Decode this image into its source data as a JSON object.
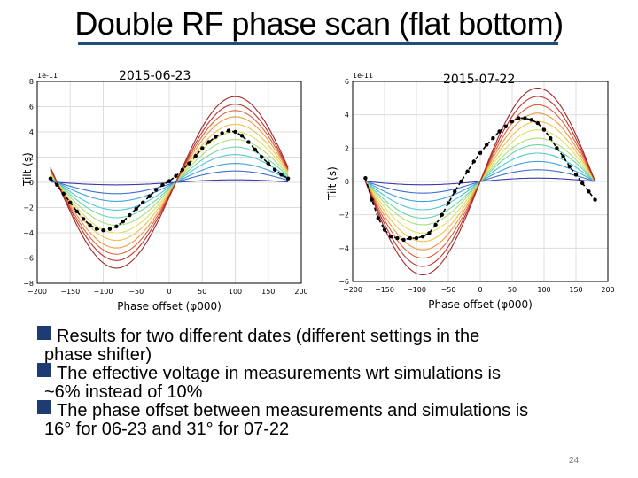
{
  "slide": {
    "title": "Double RF phase scan (flat bottom)",
    "page_number": "24",
    "bullets": [
      {
        "line1": "Results for two different dates (different settings in the",
        "line2": "phase shifter)"
      },
      {
        "line1": "The effective voltage in measurements wrt simulations is",
        "line2": "~6% instead of 10%"
      },
      {
        "line1": "The phase offset between measurements and simulations is",
        "line2": "16° for 06-23 and 31° for 07-22"
      }
    ]
  },
  "colors": {
    "title_rule": "#1f4e79",
    "bullet_marker": "#1f3b73",
    "simulation_palette": [
      "#3a3aa8",
      "#3f6fd0",
      "#3fa0e0",
      "#4fc8d8",
      "#6ad6a8",
      "#a8e07a",
      "#e0e060",
      "#f0c050",
      "#f09840",
      "#e06038",
      "#c03030",
      "#a02828"
    ],
    "measurement": "#000000"
  },
  "chart_data": [
    {
      "type": "line",
      "date_label": "2015-06-23",
      "ylabel": "Tilt (s)",
      "xlabel": "Phase offset (φ000)",
      "y_multiplier": "1e-11",
      "xlim": [
        -200,
        200
      ],
      "ylim": [
        -8,
        8
      ],
      "x_ticks": [
        "−200",
        "−150",
        "−100",
        "−50",
        "0",
        "50",
        "100",
        "150",
        "200"
      ],
      "y_ticks": [
        "8",
        "6",
        "4",
        "2",
        "0",
        "−2",
        "−4",
        "−6",
        "−8"
      ],
      "grid": true,
      "simulation": {
        "form": "amplitude * sin(phase - zero_crossing)",
        "x_range": [
          -180,
          180
        ],
        "zero_crossing": 10,
        "amplitudes": [
          0.2,
          0.9,
          1.5,
          2.2,
          2.8,
          3.4,
          4.0,
          4.6,
          5.2,
          5.7,
          6.2,
          6.8
        ]
      },
      "measurement": {
        "x": [
          -180,
          -170,
          -160,
          -150,
          -140,
          -130,
          -120,
          -110,
          -100,
          -90,
          -80,
          -70,
          -60,
          -50,
          -40,
          -30,
          -20,
          -10,
          0,
          10,
          20,
          30,
          40,
          50,
          60,
          70,
          80,
          90,
          100,
          110,
          120,
          130,
          140,
          150,
          160,
          170,
          180
        ],
        "y": [
          0.3,
          -0.2,
          -0.9,
          -1.6,
          -2.3,
          -2.9,
          -3.4,
          -3.7,
          -3.8,
          -3.7,
          -3.5,
          -3.1,
          -2.6,
          -2.1,
          -1.6,
          -1.1,
          -0.6,
          -0.2,
          0.1,
          0.5,
          1.0,
          1.5,
          2.1,
          2.7,
          3.2,
          3.6,
          3.9,
          4.1,
          4.0,
          3.7,
          3.2,
          2.6,
          2.0,
          1.5,
          1.0,
          0.6,
          0.3
        ]
      }
    },
    {
      "type": "line",
      "date_label": "2015-07-22",
      "ylabel": "Tilt (s)",
      "xlabel": "Phase offset (φ000)",
      "y_multiplier": "1e-11",
      "xlim": [
        -200,
        200
      ],
      "ylim": [
        -6,
        6
      ],
      "x_ticks": [
        "−200",
        "−150",
        "−100",
        "−50",
        "0",
        "50",
        "100",
        "150",
        "200"
      ],
      "y_ticks": [
        "6",
        "4",
        "2",
        "0",
        "−2",
        "−4",
        "−6"
      ],
      "grid": true,
      "simulation": {
        "form": "amplitude * sin(phase - zero_crossing)",
        "x_range": [
          -180,
          180
        ],
        "zero_crossing": 0,
        "amplitudes": [
          0.2,
          0.7,
          1.2,
          1.7,
          2.2,
          2.6,
          3.1,
          3.6,
          4.1,
          4.6,
          5.1,
          5.6
        ]
      },
      "measurement": {
        "x": [
          -180,
          -170,
          -160,
          -150,
          -140,
          -130,
          -120,
          -110,
          -100,
          -90,
          -80,
          -70,
          -60,
          -50,
          -40,
          -30,
          -20,
          -10,
          0,
          10,
          20,
          30,
          40,
          50,
          60,
          70,
          80,
          90,
          100,
          110,
          120,
          130,
          140,
          150,
          160,
          170,
          180
        ],
        "y": [
          0.2,
          -1.1,
          -2.2,
          -2.9,
          -3.3,
          -3.4,
          -3.5,
          -3.4,
          -3.4,
          -3.3,
          -3.1,
          -2.6,
          -2.0,
          -1.3,
          -0.6,
          0.0,
          0.6,
          1.2,
          1.7,
          2.2,
          2.6,
          3.0,
          3.3,
          3.6,
          3.8,
          3.8,
          3.7,
          3.5,
          3.1,
          2.6,
          2.0,
          1.5,
          0.9,
          0.4,
          -0.1,
          -0.6,
          -1.1
        ]
      }
    }
  ]
}
